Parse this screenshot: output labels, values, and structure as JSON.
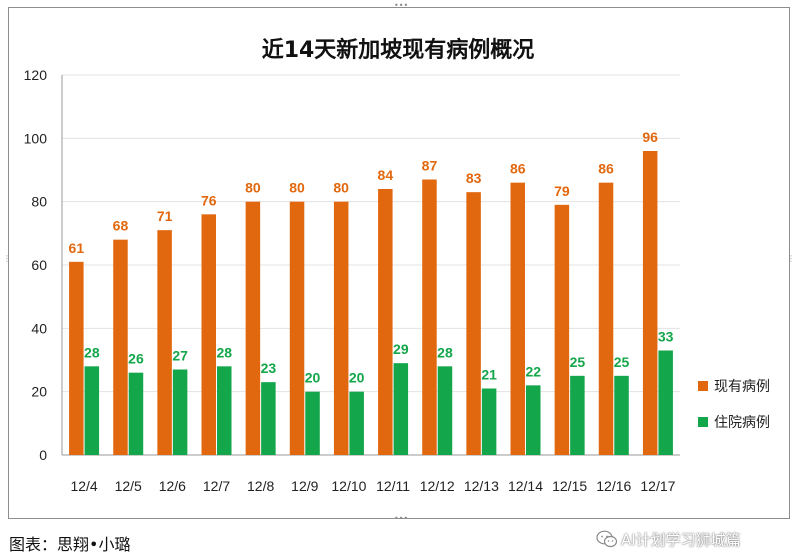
{
  "chart_data": {
    "type": "bar",
    "title": "近14天新加坡现有病例概况",
    "categories": [
      "12/4",
      "12/5",
      "12/6",
      "12/7",
      "12/8",
      "12/9",
      "12/10",
      "12/11",
      "12/12",
      "12/13",
      "12/14",
      "12/15",
      "12/16",
      "12/17"
    ],
    "series": [
      {
        "name": "现有病例",
        "color": "#e2680f",
        "values": [
          61,
          68,
          71,
          76,
          80,
          80,
          80,
          84,
          87,
          83,
          86,
          79,
          86,
          96
        ]
      },
      {
        "name": "住院病例",
        "color": "#14a64a",
        "values": [
          28,
          26,
          27,
          28,
          23,
          20,
          20,
          29,
          28,
          21,
          22,
          25,
          25,
          33
        ]
      }
    ],
    "ylim": [
      0,
      120
    ],
    "yticks": [
      0,
      20,
      40,
      60,
      80,
      100,
      120
    ],
    "grid": true,
    "legend": "right",
    "data_labels": true
  },
  "footer": {
    "credit": "图表：思翔•小璐",
    "brand": "AI计划学习狮城篇",
    "brand_icon": "wechat-icon"
  }
}
